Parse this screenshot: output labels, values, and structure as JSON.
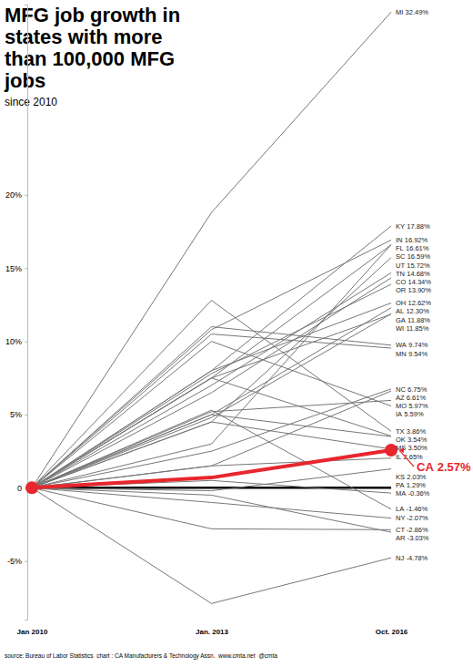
{
  "chart_data": {
    "type": "line",
    "title": "MFG job growth in states with more than 100,000 MFG jobs",
    "subtitle": "since 2010",
    "source": "source: Bureau of Labor Statistics  chart : CA Manufacturers & Technology Assn.  www.cmta.net  @cmta",
    "categories": [
      "Jan 2010",
      "Jan. 2013",
      "Oct. 2016"
    ],
    "ylim": [
      -9,
      33
    ],
    "yticks": [
      {
        "value": -5,
        "label": "-5%"
      },
      0,
      {
        "value": 5,
        "label": "5%"
      },
      {
        "value": 10,
        "label": "10%"
      },
      {
        "value": 15,
        "label": "15%"
      },
      {
        "value": 20,
        "label": "20%"
      }
    ],
    "series": [
      {
        "name": "MI",
        "color": "#777777",
        "values": [
          0,
          18.8,
          32.49
        ],
        "value_labels": [
          null,
          null,
          "32.49%"
        ]
      },
      {
        "name": "KY",
        "color": "#777777",
        "values": [
          0,
          8.0,
          17.88
        ],
        "value_labels": [
          null,
          null,
          "17.88%"
        ]
      },
      {
        "name": "IN",
        "color": "#777777",
        "values": [
          0,
          10.8,
          16.92
        ],
        "value_labels": [
          null,
          null,
          "16.92%"
        ]
      },
      {
        "name": "FL",
        "color": "#777777",
        "values": [
          0,
          3.0,
          16.61
        ],
        "value_labels": [
          null,
          null,
          "16.61%"
        ]
      },
      {
        "name": "SC",
        "color": "#777777",
        "values": [
          0,
          7.5,
          16.59
        ],
        "value_labels": [
          null,
          null,
          "16.59%"
        ]
      },
      {
        "name": "UT",
        "color": "#777777",
        "values": [
          0,
          4.5,
          15.72
        ],
        "value_labels": [
          null,
          null,
          "15.72%"
        ]
      },
      {
        "name": "TN",
        "color": "#777777",
        "values": [
          0,
          7.0,
          14.68
        ],
        "value_labels": [
          null,
          null,
          "14.68%"
        ]
      },
      {
        "name": "CO",
        "color": "#777777",
        "values": [
          0,
          6.5,
          14.34
        ],
        "value_labels": [
          null,
          null,
          "14.34%"
        ]
      },
      {
        "name": "OR",
        "color": "#777777",
        "values": [
          0,
          7.8,
          13.9
        ],
        "value_labels": [
          null,
          null,
          "13.90%"
        ]
      },
      {
        "name": "OH",
        "color": "#777777",
        "values": [
          0,
          8.0,
          12.62
        ],
        "value_labels": [
          null,
          null,
          "12.62%"
        ]
      },
      {
        "name": "AL",
        "color": "#777777",
        "values": [
          0,
          5.0,
          12.3
        ],
        "value_labels": [
          null,
          null,
          "12.30%"
        ]
      },
      {
        "name": "GA",
        "color": "#777777",
        "values": [
          0,
          4.8,
          11.88
        ],
        "value_labels": [
          null,
          null,
          "11.88%"
        ]
      },
      {
        "name": "WI",
        "color": "#777777",
        "values": [
          0,
          7.5,
          11.85
        ],
        "value_labels": [
          null,
          null,
          "11.85%"
        ]
      },
      {
        "name": "WA",
        "color": "#777777",
        "values": [
          0,
          11.0,
          9.74
        ],
        "value_labels": [
          null,
          null,
          "9.74%"
        ]
      },
      {
        "name": "MN",
        "color": "#777777",
        "values": [
          0,
          10.5,
          9.54
        ],
        "value_labels": [
          null,
          null,
          "9.54%"
        ]
      },
      {
        "name": "NC",
        "color": "#777777",
        "values": [
          0,
          2.5,
          6.75
        ],
        "value_labels": [
          null,
          null,
          "6.75%"
        ]
      },
      {
        "name": "AZ",
        "color": "#777777",
        "values": [
          0,
          1.5,
          6.61
        ],
        "value_labels": [
          null,
          null,
          "6.61%"
        ]
      },
      {
        "name": "MO",
        "color": "#777777",
        "values": [
          0,
          5.2,
          5.97
        ],
        "value_labels": [
          null,
          null,
          "5.97%"
        ]
      },
      {
        "name": "IA",
        "color": "#777777",
        "values": [
          0,
          10.0,
          5.59
        ],
        "value_labels": [
          null,
          null,
          "5.59%"
        ]
      },
      {
        "name": "TX",
        "color": "#777777",
        "values": [
          0,
          12.8,
          3.86
        ],
        "value_labels": [
          null,
          null,
          "3.86%"
        ]
      },
      {
        "name": "OK",
        "color": "#777777",
        "values": [
          0,
          7.5,
          3.54
        ],
        "value_labels": [
          null,
          null,
          "3.54%"
        ]
      },
      {
        "name": "MS",
        "color": "#777777",
        "values": [
          0,
          5.0,
          3.5
        ],
        "value_labels": [
          null,
          null,
          "3.50%"
        ]
      },
      {
        "name": "IL",
        "color": "#777777",
        "values": [
          0,
          4.5,
          2.65
        ],
        "value_labels": [
          null,
          null,
          "2.65%"
        ]
      },
      {
        "name": "CA",
        "color": "#e8262d",
        "marker": "circle",
        "values": [
          0,
          0.7,
          2.57
        ],
        "value_labels": [
          null,
          null,
          "2.57%"
        ]
      },
      {
        "name": "KS",
        "color": "#777777",
        "values": [
          0,
          1.5,
          2.03
        ],
        "value_labels": [
          null,
          null,
          "2.03%"
        ]
      },
      {
        "name": "PA",
        "color": "#777777",
        "values": [
          0,
          -0.2,
          1.29
        ],
        "value_labels": [
          null,
          null,
          "1.29%"
        ]
      },
      {
        "name": "MA",
        "color": "#777777",
        "values": [
          0,
          0.5,
          -0.36
        ],
        "value_labels": [
          null,
          null,
          "-0.36%"
        ]
      },
      {
        "name": "LA",
        "color": "#777777",
        "values": [
          0,
          5.3,
          -1.46
        ],
        "value_labels": [
          null,
          null,
          "-1.46%"
        ]
      },
      {
        "name": "NY",
        "color": "#777777",
        "values": [
          0,
          -1.0,
          -2.07
        ],
        "value_labels": [
          null,
          null,
          "-2.07%"
        ]
      },
      {
        "name": "CT",
        "color": "#777777",
        "values": [
          0,
          -2.8,
          -2.86
        ],
        "value_labels": [
          null,
          null,
          "-2.86%"
        ]
      },
      {
        "name": "AR",
        "color": "#777777",
        "values": [
          0,
          -0.5,
          -3.03
        ],
        "value_labels": [
          null,
          null,
          "-3.03%"
        ]
      },
      {
        "name": "NJ",
        "color": "#777777",
        "values": [
          0,
          -7.9,
          -4.78
        ],
        "value_labels": [
          null,
          null,
          "-4.78%"
        ]
      }
    ]
  }
}
